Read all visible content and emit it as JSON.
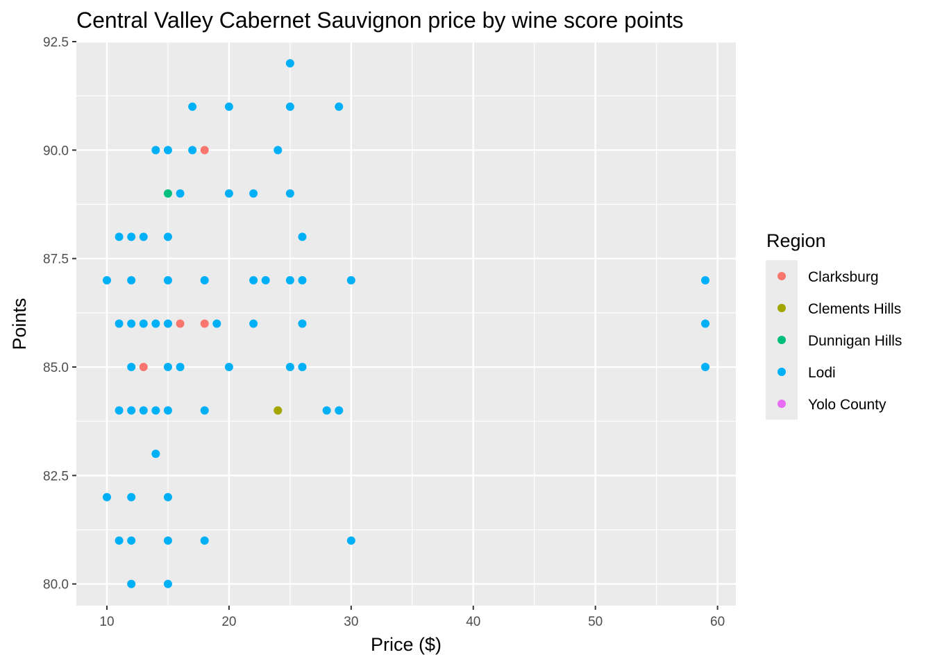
{
  "chart_data": {
    "type": "scatter",
    "title": "Central Valley Cabernet Sauvignon price by wine score points",
    "xlabel": "Price ($)",
    "ylabel": "Points",
    "xlim": [
      7.5,
      61.5
    ],
    "ylim": [
      79.5,
      92.5
    ],
    "x_ticks": [
      10,
      20,
      30,
      40,
      50,
      60
    ],
    "y_ticks": [
      80.0,
      82.5,
      85.0,
      87.5,
      90.0,
      92.5
    ],
    "x_tick_labels": [
      "10",
      "20",
      "30",
      "40",
      "50",
      "60"
    ],
    "y_tick_labels": [
      "80.0",
      "82.5",
      "85.0",
      "87.5",
      "90.0",
      "92.5"
    ],
    "grid": true,
    "legend": {
      "title": "Region",
      "placement": "right"
    },
    "series": [
      {
        "name": "Clarksburg",
        "color": "#F8766D",
        "points": [
          [
            18,
            90
          ],
          [
            16,
            86
          ],
          [
            18,
            86
          ],
          [
            13,
            85
          ]
        ]
      },
      {
        "name": "Clements Hills",
        "color": "#A3A500",
        "points": [
          [
            24,
            84
          ]
        ]
      },
      {
        "name": "Dunnigan Hills",
        "color": "#00BF7D",
        "points": [
          [
            15,
            89
          ]
        ]
      },
      {
        "name": "Lodi",
        "color": "#00B0F6",
        "points": [
          [
            25,
            92
          ],
          [
            17,
            91
          ],
          [
            20,
            91
          ],
          [
            25,
            91
          ],
          [
            29,
            91
          ],
          [
            14,
            90
          ],
          [
            15,
            90
          ],
          [
            17,
            90
          ],
          [
            24,
            90
          ],
          [
            16,
            89
          ],
          [
            20,
            89
          ],
          [
            22,
            89
          ],
          [
            25,
            89
          ],
          [
            11,
            88
          ],
          [
            12,
            88
          ],
          [
            13,
            88
          ],
          [
            15,
            88
          ],
          [
            26,
            88
          ],
          [
            10,
            87
          ],
          [
            12,
            87
          ],
          [
            15,
            87
          ],
          [
            18,
            87
          ],
          [
            22,
            87
          ],
          [
            23,
            87
          ],
          [
            25,
            87
          ],
          [
            26,
            87
          ],
          [
            30,
            87
          ],
          [
            59,
            87
          ],
          [
            11,
            86
          ],
          [
            12,
            86
          ],
          [
            13,
            86
          ],
          [
            14,
            86
          ],
          [
            15,
            86
          ],
          [
            19,
            86
          ],
          [
            22,
            86
          ],
          [
            26,
            86
          ],
          [
            59,
            86
          ],
          [
            12,
            85
          ],
          [
            15,
            85
          ],
          [
            16,
            85
          ],
          [
            20,
            85
          ],
          [
            25,
            85
          ],
          [
            26,
            85
          ],
          [
            59,
            85
          ],
          [
            11,
            84
          ],
          [
            12,
            84
          ],
          [
            13,
            84
          ],
          [
            14,
            84
          ],
          [
            15,
            84
          ],
          [
            18,
            84
          ],
          [
            28,
            84
          ],
          [
            29,
            84
          ],
          [
            14,
            83
          ],
          [
            10,
            82
          ],
          [
            12,
            82
          ],
          [
            15,
            82
          ],
          [
            11,
            81
          ],
          [
            12,
            81
          ],
          [
            15,
            81
          ],
          [
            18,
            81
          ],
          [
            30,
            81
          ],
          [
            12,
            80
          ],
          [
            15,
            80
          ]
        ]
      },
      {
        "name": "Yolo County",
        "color": "#E76BF3",
        "points": []
      }
    ]
  },
  "colors": {
    "panel_background": "#EBEBEB",
    "grid_major": "#FFFFFF",
    "tick_text": "#4D4D4D"
  }
}
